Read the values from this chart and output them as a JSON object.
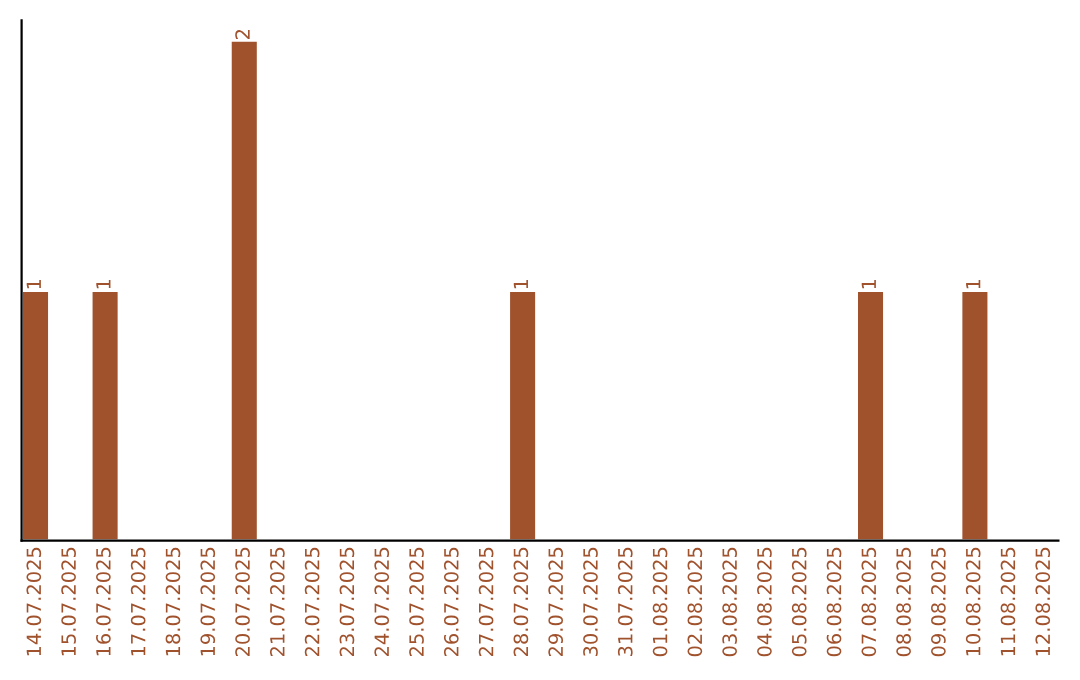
{
  "chart_data": {
    "type": "bar",
    "categories": [
      "14.07.2025",
      "15.07.2025",
      "16.07.2025",
      "17.07.2025",
      "18.07.2025",
      "19.07.2025",
      "20.07.2025",
      "21.07.2025",
      "22.07.2025",
      "23.07.2025",
      "24.07.2025",
      "25.07.2025",
      "26.07.2025",
      "27.07.2025",
      "28.07.2025",
      "29.07.2025",
      "30.07.2025",
      "31.07.2025",
      "01.08.2025",
      "02.08.2025",
      "03.08.2025",
      "04.08.2025",
      "05.08.2025",
      "06.08.2025",
      "07.08.2025",
      "08.08.2025",
      "09.08.2025",
      "10.08.2025",
      "11.08.2025",
      "12.08.2025"
    ],
    "values": [
      1,
      null,
      1,
      null,
      null,
      null,
      2,
      null,
      null,
      null,
      null,
      null,
      null,
      null,
      1,
      null,
      null,
      null,
      null,
      null,
      null,
      null,
      null,
      null,
      1,
      null,
      null,
      1,
      null,
      null
    ],
    "color": "#a0522d",
    "ylim": [
      0,
      2.08
    ],
    "data_labels": true,
    "tick_labels": "x",
    "grid": false,
    "legend": false
  }
}
